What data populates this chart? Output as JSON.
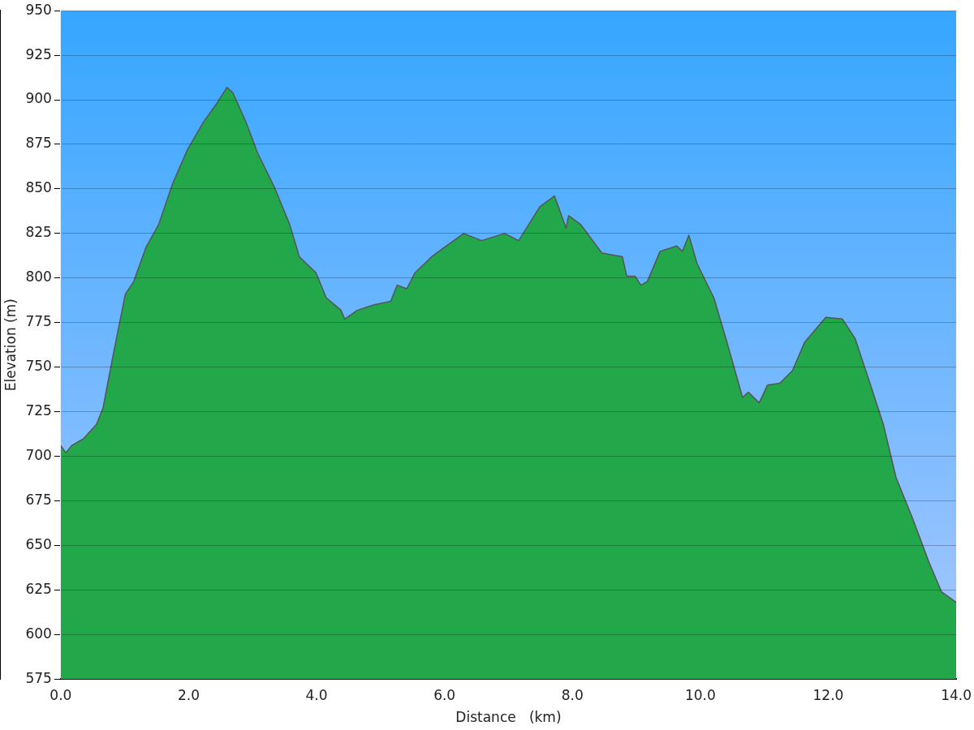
{
  "chart_data": {
    "type": "area",
    "xlabel": "Distance   (km)",
    "ylabel": "Elevation (m)",
    "xlim": [
      0,
      14
    ],
    "ylim": [
      575,
      950
    ],
    "xticks": [
      {
        "value": 0,
        "label": "0.0"
      },
      {
        "value": 2,
        "label": "2.0"
      },
      {
        "value": 4,
        "label": "4.0"
      },
      {
        "value": 6,
        "label": "6.0"
      },
      {
        "value": 8,
        "label": "8.0"
      },
      {
        "value": 10,
        "label": "10.0"
      },
      {
        "value": 12,
        "label": "12.0"
      },
      {
        "value": 14,
        "label": "14.0"
      }
    ],
    "yticks": [
      575,
      600,
      625,
      650,
      675,
      700,
      725,
      750,
      775,
      800,
      825,
      850,
      875,
      900,
      925,
      950
    ],
    "grid": "y",
    "legend": false,
    "marker": "none",
    "line_style": "solid",
    "series": [
      {
        "color": "#22a84a",
        "x": [
          0,
          0.08,
          0.17,
          0.36,
          0.56,
          0.66,
          0.82,
          1.01,
          1.14,
          1.33,
          1.53,
          1.75,
          1.98,
          2.24,
          2.44,
          2.6,
          2.69,
          2.89,
          3.08,
          3.34,
          3.58,
          3.73,
          3.99,
          4.15,
          4.38,
          4.44,
          4.64,
          4.9,
          5.16,
          5.26,
          5.41,
          5.54,
          5.8,
          5.99,
          6.3,
          6.58,
          6.94,
          7.16,
          7.49,
          7.72,
          7.9,
          7.94,
          8.13,
          8.46,
          8.78,
          8.85,
          8.98,
          9.07,
          9.17,
          9.37,
          9.63,
          9.72,
          9.82,
          9.95,
          10.21,
          10.4,
          10.66,
          10.75,
          10.92,
          11.05,
          11.24,
          11.44,
          11.63,
          11.96,
          12.22,
          12.42,
          12.67,
          12.86,
          13.06,
          13.32,
          13.58,
          13.77,
          14
        ],
        "values": [
          706,
          702,
          706,
          710,
          718,
          727,
          757,
          791,
          798,
          817,
          830,
          853,
          872,
          888,
          898,
          907,
          904,
          888,
          870,
          851,
          830,
          812,
          803,
          789,
          782,
          777,
          782,
          785,
          787,
          796,
          794,
          803,
          812,
          817,
          825,
          821,
          825,
          821,
          840,
          846,
          828,
          835,
          830,
          814,
          812,
          801,
          801,
          796,
          798,
          815,
          818,
          815,
          824,
          808,
          789,
          766,
          733,
          736,
          730,
          740,
          741,
          748,
          764,
          778,
          777,
          766,
          739,
          718,
          688,
          665,
          640,
          624,
          618
        ]
      }
    ]
  }
}
